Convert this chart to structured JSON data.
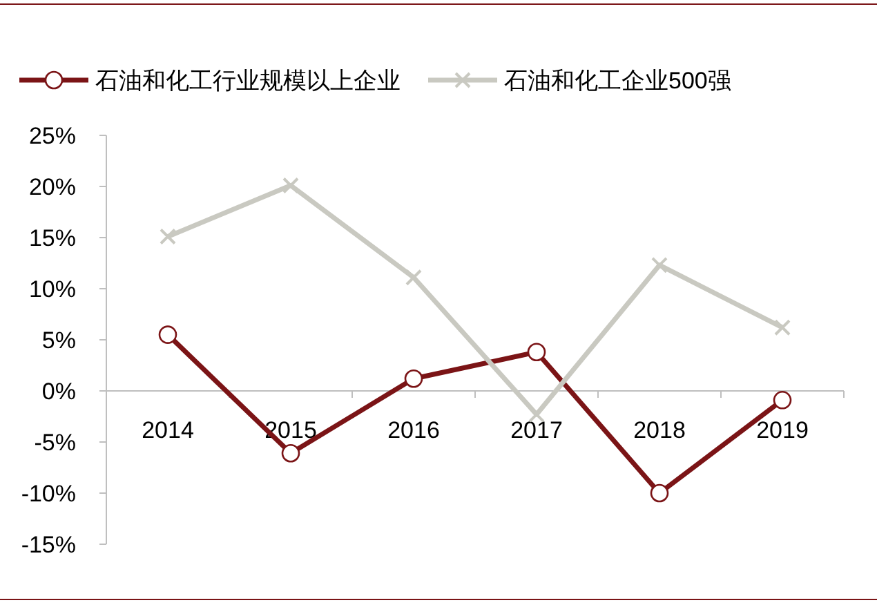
{
  "chart_data": {
    "type": "line",
    "categories": [
      "2014",
      "2015",
      "2016",
      "2017",
      "2018",
      "2019"
    ],
    "series": [
      {
        "name": "石油和化工行业规模以上企业",
        "color": "#7b1416",
        "marker": "circle",
        "values": [
          5.5,
          -6.1,
          1.2,
          3.8,
          -10,
          -0.9
        ]
      },
      {
        "name": "石油和化工企业500强",
        "color": "#c9c9c1",
        "marker": "cross",
        "values": [
          15.1,
          20.1,
          11.1,
          -2.3,
          12.3,
          6.2
        ]
      }
    ],
    "ylim": [
      -15,
      25
    ],
    "yticks": [
      {
        "value": -15,
        "label": "-15%"
      },
      {
        "value": -10,
        "label": "-10%"
      },
      {
        "value": -5,
        "label": "-5%"
      },
      {
        "value": 0,
        "label": "0%"
      },
      {
        "value": 5,
        "label": "5%"
      },
      {
        "value": 10,
        "label": "10%"
      },
      {
        "value": 15,
        "label": "15%"
      },
      {
        "value": 20,
        "label": "20%"
      },
      {
        "value": 25,
        "label": "25%"
      }
    ],
    "legend": "top",
    "grid": false
  }
}
